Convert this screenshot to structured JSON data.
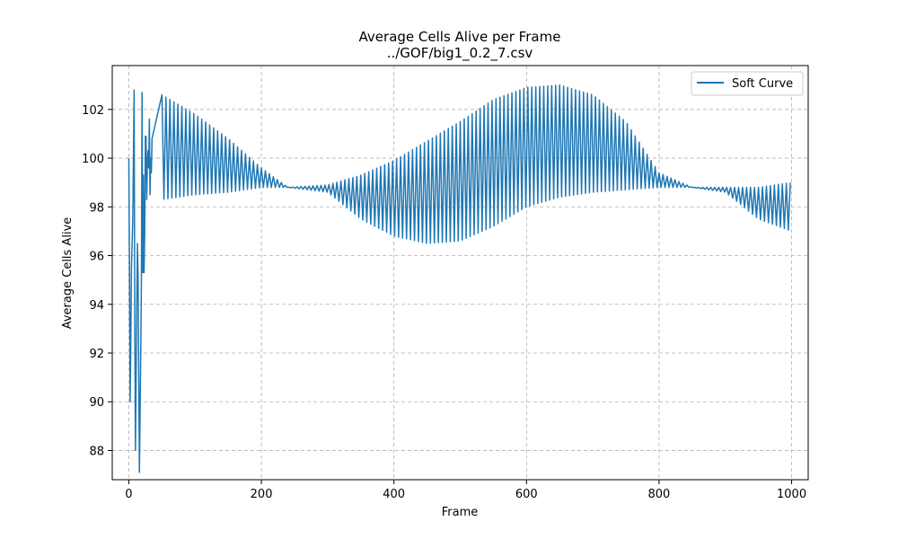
{
  "chart_data": {
    "type": "line",
    "title": "Average Cells Alive per Frame",
    "subtitle": "../GOF/big1_0.2_7.csv",
    "xlabel": "Frame",
    "ylabel": "Average Cells Alive",
    "xlim": [
      -25,
      1025
    ],
    "ylim": [
      86.8,
      103.8
    ],
    "xticks": [
      0,
      200,
      400,
      600,
      800,
      1000
    ],
    "yticks": [
      88,
      90,
      92,
      94,
      96,
      98,
      100,
      102
    ],
    "grid": true,
    "grid_style": "dashed",
    "legend_position": "top-right",
    "series": [
      {
        "name": "Soft Curve",
        "color": "#1f77b4",
        "initial_points": [
          [
            0,
            100.0
          ],
          [
            1,
            95.5
          ],
          [
            2,
            90.0
          ],
          [
            3,
            92.5
          ],
          [
            4,
            95.5
          ],
          [
            5,
            96.5
          ],
          [
            6,
            97.5
          ],
          [
            8,
            102.8
          ],
          [
            9,
            93.0
          ],
          [
            10,
            88.0
          ],
          [
            11,
            91.0
          ],
          [
            12,
            94.0
          ],
          [
            13,
            96.5
          ],
          [
            14,
            95.0
          ],
          [
            15,
            91.0
          ],
          [
            16,
            87.1
          ],
          [
            17,
            89.5
          ],
          [
            18,
            92.0
          ],
          [
            19,
            95.0
          ],
          [
            20,
            102.7
          ],
          [
            21,
            95.3
          ],
          [
            22,
            99.3
          ],
          [
            23,
            95.3
          ],
          [
            24,
            97.0
          ],
          [
            25,
            100.9
          ],
          [
            26,
            100.9
          ],
          [
            27,
            98.3
          ],
          [
            28,
            99.8
          ],
          [
            29,
            100.3
          ],
          [
            30,
            99.6
          ],
          [
            31,
            101.6
          ],
          [
            32,
            98.5
          ],
          [
            33,
            100.0
          ],
          [
            34,
            99.4
          ],
          [
            35,
            100.8
          ]
        ],
        "envelope": {
          "x": [
            50,
            100,
            150,
            200,
            240,
            300,
            350,
            400,
            450,
            500,
            550,
            600,
            650,
            700,
            750,
            800,
            850,
            900,
            950,
            1000
          ],
          "upper": [
            102.6,
            101.8,
            100.8,
            99.6,
            98.8,
            98.9,
            99.3,
            99.9,
            100.7,
            101.5,
            102.4,
            102.9,
            103.0,
            102.6,
            101.5,
            99.4,
            98.8,
            98.8,
            98.8,
            99.0
          ],
          "lower": [
            98.3,
            98.5,
            98.6,
            98.8,
            98.8,
            98.6,
            97.5,
            96.8,
            96.5,
            96.6,
            97.2,
            98.0,
            98.4,
            98.6,
            98.7,
            98.8,
            98.8,
            98.6,
            97.5,
            97.0
          ]
        },
        "oscillation_period_frames": 6
      }
    ]
  }
}
